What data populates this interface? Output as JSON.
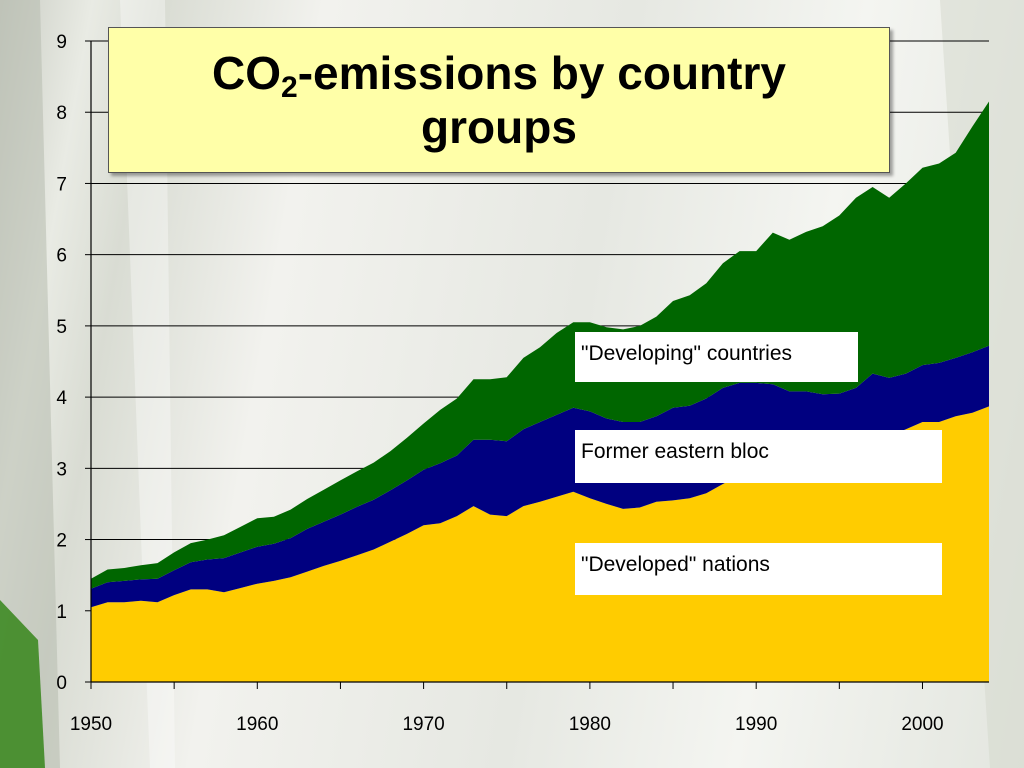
{
  "chart_data": {
    "type": "area",
    "stacked": true,
    "title_parts": {
      "pre": "CO",
      "sub": "2",
      "post": "-emissions by country groups"
    },
    "xlim": [
      1950,
      2004
    ],
    "ylim": [
      0,
      9
    ],
    "x_ticks": [
      1950,
      1960,
      1970,
      1980,
      1990,
      2000
    ],
    "y_ticks": [
      0,
      1,
      2,
      3,
      4,
      5,
      6,
      7,
      8,
      9
    ],
    "grid": "horizontal",
    "x": [
      1950,
      1951,
      1952,
      1953,
      1954,
      1955,
      1956,
      1957,
      1958,
      1959,
      1960,
      1961,
      1962,
      1963,
      1964,
      1965,
      1966,
      1967,
      1968,
      1969,
      1970,
      1971,
      1972,
      1973,
      1974,
      1975,
      1976,
      1977,
      1978,
      1979,
      1980,
      1981,
      1982,
      1983,
      1984,
      1985,
      1986,
      1987,
      1988,
      1989,
      1990,
      1991,
      1992,
      1993,
      1994,
      1995,
      1996,
      1997,
      1998,
      1999,
      2000,
      2001,
      2002,
      2003,
      2004
    ],
    "series": [
      {
        "name": "\"Developed\" nations",
        "color": "#ffcc00",
        "values": [
          1.05,
          1.12,
          1.12,
          1.14,
          1.12,
          1.22,
          1.3,
          1.3,
          1.26,
          1.32,
          1.38,
          1.42,
          1.47,
          1.55,
          1.63,
          1.7,
          1.78,
          1.86,
          1.97,
          2.08,
          2.2,
          2.23,
          2.33,
          2.47,
          2.35,
          2.33,
          2.47,
          2.53,
          2.6,
          2.67,
          2.58,
          2.5,
          2.43,
          2.45,
          2.53,
          2.55,
          2.58,
          2.65,
          2.78,
          2.9,
          2.95,
          2.88,
          2.93,
          2.96,
          3.02,
          3.1,
          3.23,
          3.38,
          3.45,
          3.55,
          3.65,
          3.65,
          3.73,
          3.78,
          3.87
        ]
      },
      {
        "name": "Former eastern bloc",
        "color": "#000080",
        "values": [
          0.26,
          0.28,
          0.3,
          0.3,
          0.33,
          0.35,
          0.38,
          0.42,
          0.48,
          0.5,
          0.52,
          0.52,
          0.55,
          0.6,
          0.62,
          0.65,
          0.68,
          0.7,
          0.72,
          0.75,
          0.78,
          0.84,
          0.85,
          0.93,
          1.05,
          1.05,
          1.08,
          1.12,
          1.15,
          1.18,
          1.22,
          1.2,
          1.22,
          1.2,
          1.2,
          1.3,
          1.3,
          1.33,
          1.35,
          1.3,
          1.25,
          1.3,
          1.15,
          1.12,
          1.02,
          0.95,
          0.9,
          0.95,
          0.82,
          0.78,
          0.8,
          0.83,
          0.82,
          0.85,
          0.85
        ]
      },
      {
        "name": "\"Developing\" countries",
        "color": "#006600",
        "values": [
          0.14,
          0.18,
          0.18,
          0.2,
          0.22,
          0.25,
          0.27,
          0.28,
          0.32,
          0.36,
          0.4,
          0.38,
          0.4,
          0.42,
          0.45,
          0.48,
          0.5,
          0.52,
          0.55,
          0.6,
          0.65,
          0.75,
          0.8,
          0.85,
          0.85,
          0.9,
          1.0,
          1.05,
          1.15,
          1.2,
          1.25,
          1.28,
          1.3,
          1.35,
          1.4,
          1.5,
          1.55,
          1.62,
          1.75,
          1.85,
          1.85,
          2.13,
          2.13,
          2.24,
          2.36,
          2.5,
          2.67,
          2.62,
          2.53,
          2.67,
          2.77,
          2.8,
          2.88,
          3.17,
          3.43
        ]
      }
    ]
  }
}
